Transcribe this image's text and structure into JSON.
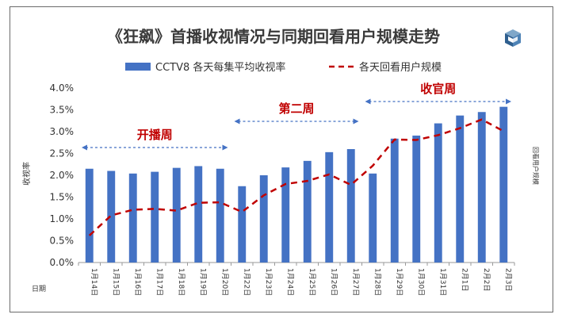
{
  "chart_data": {
    "type": "bar",
    "title": "《狂飙》首播收视情况与同期回看用户规模走势",
    "xlabel": "日期",
    "ylabel": "收视率",
    "y2label": "回看用户规模",
    "ylim": [
      0,
      4
    ],
    "yticks": [
      "0.0%",
      "0.5%",
      "1.0%",
      "1.5%",
      "2.0%",
      "2.5%",
      "3.0%",
      "3.5%",
      "4.0%"
    ],
    "categories": [
      "1月14日",
      "1月15日",
      "1月16日",
      "1月17日",
      "1月18日",
      "1月19日",
      "1月20日",
      "1月22日",
      "1月23日",
      "1月24日",
      "1月25日",
      "1月26日",
      "1月27日",
      "1月28日",
      "1月29日",
      "1月30日",
      "1月31日",
      "2月1日",
      "2月2日",
      "2月3日"
    ],
    "series": [
      {
        "name": "CCTV8 各天每集平均收视率",
        "kind": "bar",
        "color": "#4472C4",
        "values": [
          2.15,
          2.1,
          2.04,
          2.08,
          2.17,
          2.21,
          2.15,
          1.75,
          2.0,
          2.18,
          2.33,
          2.53,
          2.6,
          2.04,
          2.84,
          2.91,
          3.19,
          3.37,
          3.45,
          3.57
        ]
      },
      {
        "name": "各天回看用户规模",
        "kind": "line",
        "style": "dashed",
        "color": "#C00000",
        "values": [
          0.62,
          1.08,
          1.21,
          1.23,
          1.19,
          1.37,
          1.38,
          1.16,
          1.54,
          1.8,
          1.87,
          2.02,
          1.78,
          2.22,
          2.82,
          2.81,
          2.92,
          3.08,
          3.28,
          3.01
        ]
      }
    ],
    "annotations": [
      {
        "text": "开播周",
        "start": 0,
        "end": 6
      },
      {
        "text": "第二周",
        "start": 7,
        "end": 12
      },
      {
        "text": "收官周",
        "start": 13,
        "end": 19
      }
    ],
    "legend": "top",
    "grid": false,
    "accent_color": "#C00000"
  },
  "logo_icon": "box-logo-icon"
}
